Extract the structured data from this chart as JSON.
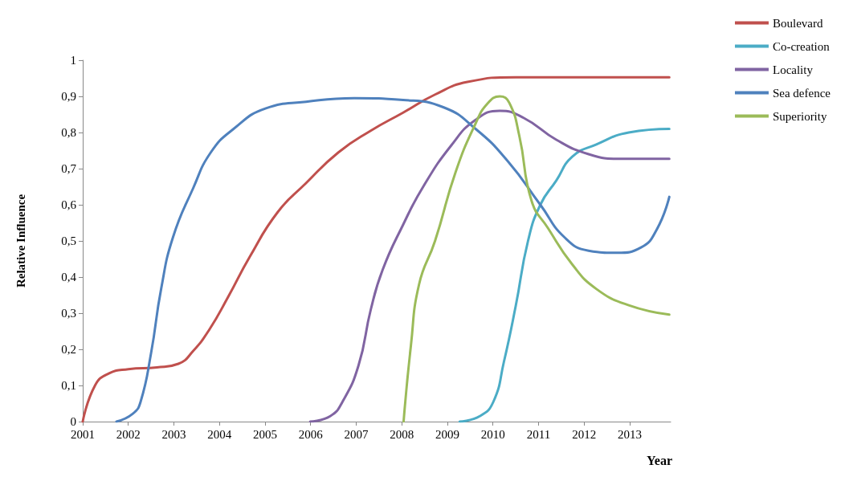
{
  "chart_data": {
    "type": "line",
    "xlabel": "Year",
    "ylabel": "Relative Influence",
    "xlim": [
      2001,
      2013.9
    ],
    "xticks": [
      2001,
      2002,
      2003,
      2004,
      2005,
      2006,
      2007,
      2008,
      2009,
      2010,
      2011,
      2012,
      2013
    ],
    "ylim": [
      0,
      1
    ],
    "yticks": [
      0,
      {
        "value": 0.1,
        "label": "0,1"
      },
      {
        "value": 0.2,
        "label": "0,2"
      },
      {
        "value": 0.3,
        "label": "0,3"
      },
      {
        "value": 0.4,
        "label": "0,4"
      },
      {
        "value": 0.5,
        "label": "0,5"
      },
      {
        "value": 0.6,
        "label": "0,6"
      },
      {
        "value": 0.7,
        "label": "0,7"
      },
      {
        "value": 0.8,
        "label": "0,8"
      },
      {
        "value": 0.9,
        "label": "0,9"
      },
      1
    ],
    "grid": false,
    "legend": "top right",
    "marker": "none",
    "line_style": "solid",
    "series": [
      {
        "name": "Boulevard",
        "color": "#c0504d",
        "x": [
          2001,
          2001.27,
          2001.57,
          2002,
          2002.63,
          2003.1,
          2003.42,
          2003.78,
          2004.19,
          2004.66,
          2005.28,
          2005.9,
          2006.61,
          2007.32,
          2008.03,
          2008.73,
          2009.44,
          2010.5,
          2013.87
        ],
        "values": [
          0,
          0.1,
          0.133,
          0.145,
          0.15,
          0.16,
          0.195,
          0.255,
          0.345,
          0.455,
          0.58,
          0.66,
          0.745,
          0.805,
          0.855,
          0.905,
          0.94,
          0.953,
          0.953
        ]
      },
      {
        "name": "Co-creation",
        "color": "#4bacc6",
        "x": [
          2009.27,
          2009.71,
          2010.01,
          2010.24,
          2010.5,
          2010.77,
          2011.04,
          2011.39,
          2011.74,
          2012.27,
          2012.98,
          2013.87
        ],
        "values": [
          0,
          0.015,
          0.055,
          0.165,
          0.32,
          0.5,
          0.6,
          0.667,
          0.733,
          0.767,
          0.8,
          0.81
        ]
      },
      {
        "name": "Locality",
        "color": "#8064a2",
        "x": [
          2005.99,
          2006.43,
          2006.7,
          2007.05,
          2007.32,
          2007.58,
          2008.03,
          2008.47,
          2009.09,
          2009.62,
          2010.15,
          2010.68,
          2011.39,
          2012.1,
          2012.8,
          2013.87
        ],
        "values": [
          0,
          0.015,
          0.055,
          0.155,
          0.31,
          0.42,
          0.545,
          0.65,
          0.765,
          0.835,
          0.86,
          0.84,
          0.78,
          0.74,
          0.727,
          0.727
        ]
      },
      {
        "name": "Sea defence",
        "color": "#4f81bd",
        "x": [
          2001.74,
          2002.1,
          2002.27,
          2002.5,
          2002.72,
          2002.98,
          2003.42,
          2003.81,
          2004.31,
          2005.02,
          2005.9,
          2006.96,
          2008.03,
          2008.91,
          2009.62,
          2010.33,
          2011.04,
          2011.57,
          2012.1,
          2012.72,
          2013.25,
          2013.6,
          2013.87
        ],
        "values": [
          0,
          0.022,
          0.055,
          0.19,
          0.367,
          0.51,
          0.645,
          0.745,
          0.81,
          0.867,
          0.885,
          0.895,
          0.89,
          0.87,
          0.81,
          0.72,
          0.6,
          0.51,
          0.473,
          0.467,
          0.482,
          0.533,
          0.622
        ]
      },
      {
        "name": "Superiority",
        "color": "#9bbb59",
        "x": [
          2008.04,
          2008.2,
          2008.38,
          2008.73,
          2009.18,
          2009.62,
          2009.88,
          2010.15,
          2010.36,
          2010.58,
          2010.85,
          2011.21,
          2011.74,
          2012.27,
          2012.98,
          2013.87
        ],
        "values": [
          0,
          0.21,
          0.38,
          0.5,
          0.69,
          0.825,
          0.88,
          0.9,
          0.882,
          0.79,
          0.61,
          0.535,
          0.435,
          0.367,
          0.322,
          0.296
        ]
      }
    ]
  }
}
